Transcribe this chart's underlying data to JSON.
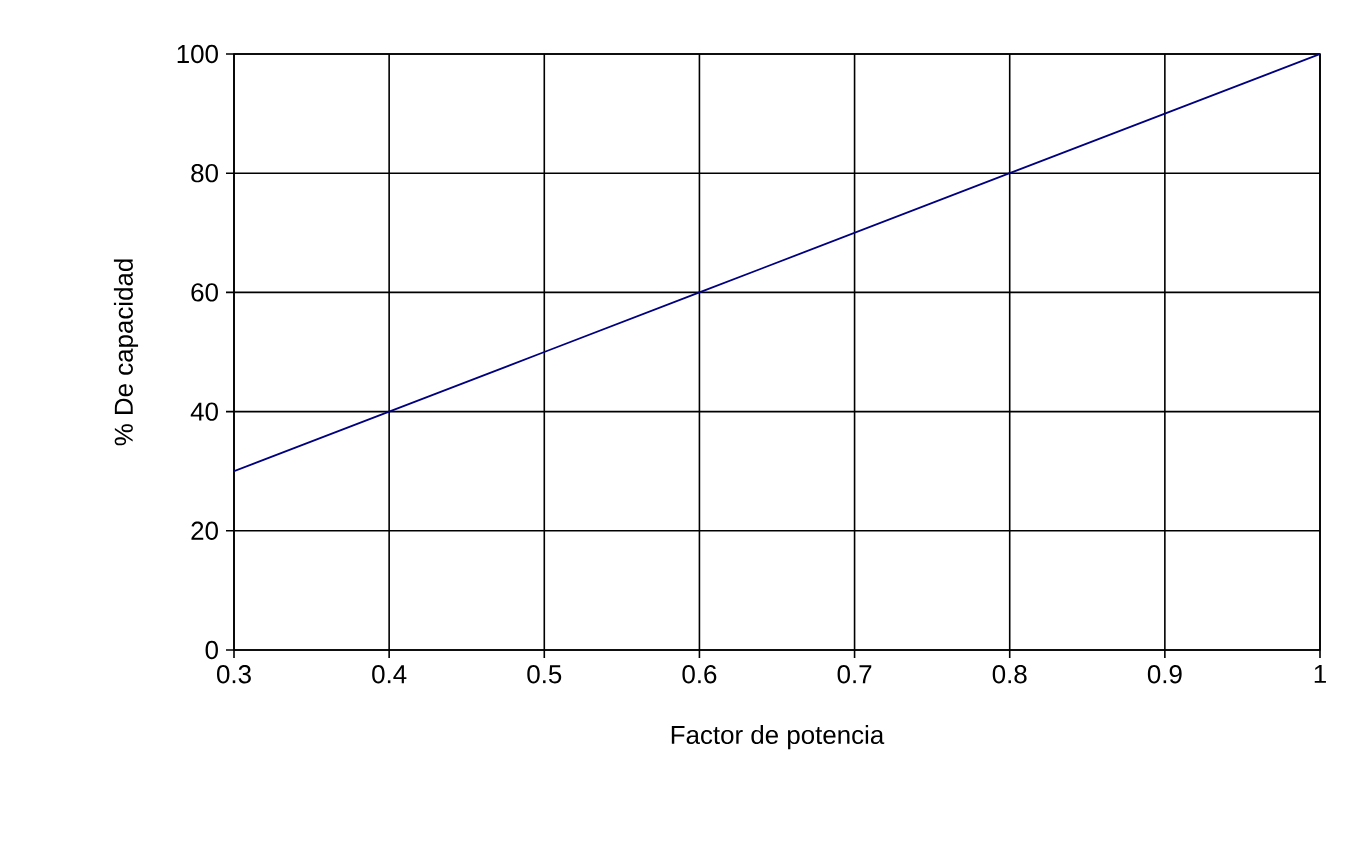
{
  "chart_data": {
    "type": "line",
    "xlabel": "Factor de potencia",
    "ylabel": "% De capacidad",
    "x": [
      0.3,
      0.4,
      0.5,
      0.6,
      0.7,
      0.8,
      0.9,
      1
    ],
    "series": [
      {
        "color": "#000080",
        "values": [
          30,
          40,
          50,
          60,
          70,
          80,
          90,
          100
        ]
      }
    ],
    "xlim": [
      0.3,
      1
    ],
    "ylim": [
      0,
      100
    ],
    "xticks": [
      0.3,
      0.4,
      0.5,
      0.6,
      0.7,
      0.8,
      0.9,
      1
    ],
    "yticks": [
      0,
      20,
      40,
      60,
      80,
      100
    ],
    "grid": true,
    "marker": "none",
    "line_style": "solid"
  }
}
